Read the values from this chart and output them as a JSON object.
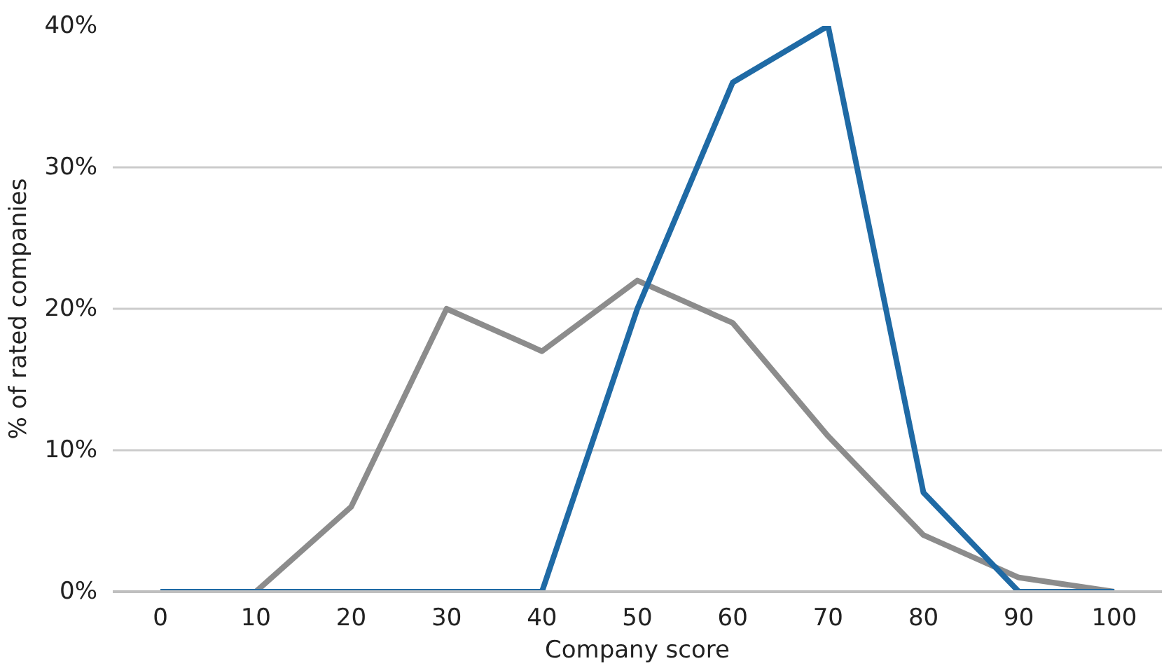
{
  "chart_data": {
    "type": "line",
    "xlabel": "Company score",
    "ylabel": "% of rated companies",
    "categories": [
      "0",
      "10",
      "20",
      "30",
      "40",
      "50",
      "60",
      "70",
      "80",
      "90",
      "100"
    ],
    "ylim": [
      0,
      40
    ],
    "yticks": [
      {
        "value": 0,
        "label": "0%"
      },
      {
        "value": 10,
        "label": "10%"
      },
      {
        "value": 20,
        "label": "20%"
      },
      {
        "value": 30,
        "label": "30%"
      },
      {
        "value": 40,
        "label": "40%"
      }
    ],
    "grid": "y",
    "marker": "none",
    "line_style": "solid",
    "series": [
      {
        "color": "#8c8c8c",
        "values": [
          0,
          0,
          6,
          20,
          17,
          22,
          19,
          11,
          4,
          1,
          0
        ]
      },
      {
        "color": "#1f6aa5",
        "values": [
          0,
          0,
          0,
          0,
          0,
          20,
          36,
          40,
          7,
          0,
          0
        ]
      }
    ]
  }
}
